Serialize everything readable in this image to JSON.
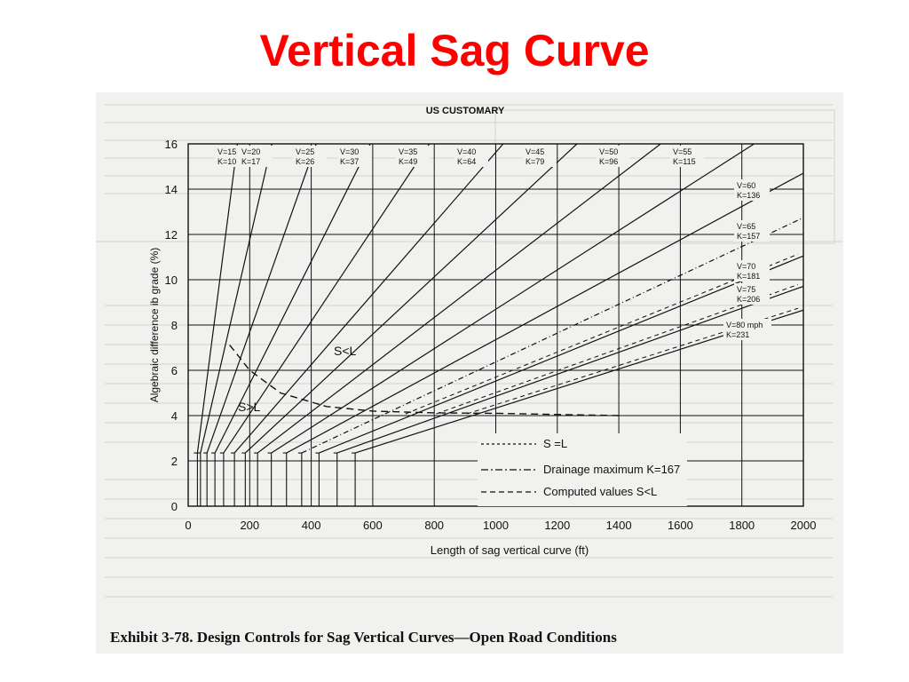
{
  "page": {
    "title": "Vertical Sag Curve",
    "title_color": "#ff0000"
  },
  "exhibit": {
    "caption": "Exhibit 3-78.  Design Controls for Sag Vertical Curves—Open Road Conditions"
  },
  "chart_data": {
    "type": "line",
    "title": "US CUSTOMARY",
    "xlabel": "Length of sag vertical curve (ft)",
    "ylabel": "Algebraic difference ib grade (%)",
    "xlim": [
      0,
      2000
    ],
    "ylim": [
      0,
      16
    ],
    "xticks": [
      0,
      200,
      400,
      600,
      800,
      1000,
      1200,
      1400,
      1600,
      1800,
      2000
    ],
    "yticks": [
      0,
      2,
      4,
      6,
      8,
      10,
      12,
      14,
      16
    ],
    "grid": true,
    "series": [
      {
        "name": "V=15",
        "label_k": "K=10",
        "K": 10
      },
      {
        "name": "V=20",
        "label_k": "K=17",
        "K": 17
      },
      {
        "name": "V=25",
        "label_k": "K=26",
        "K": 26
      },
      {
        "name": "V=30",
        "label_k": "K=37",
        "K": 37
      },
      {
        "name": "V=35",
        "label_k": "K=49",
        "K": 49
      },
      {
        "name": "V=40",
        "label_k": "K=64",
        "K": 64
      },
      {
        "name": "V=45",
        "label_k": "K=79",
        "K": 79
      },
      {
        "name": "V=50",
        "label_k": "K=96",
        "K": 96
      },
      {
        "name": "V=55",
        "label_k": "K=115",
        "K": 115
      },
      {
        "name": "V=60",
        "label_k": "K=136",
        "K": 136
      },
      {
        "name": "V=65",
        "label_k": "K=157",
        "K": 157
      },
      {
        "name": "V=70",
        "label_k": "K=181",
        "K": 181
      },
      {
        "name": "V=75",
        "label_k": "K=206",
        "K": 206
      },
      {
        "name": "V=80 mph",
        "label_k": "K=231",
        "K": 231
      }
    ],
    "boundary_S_equals_L": [
      [
        1400,
        4.0
      ],
      [
        1200,
        4.05
      ],
      [
        1000,
        4.1
      ],
      [
        800,
        4.12
      ],
      [
        600,
        4.2
      ],
      [
        450,
        4.4
      ],
      [
        300,
        5.0
      ],
      [
        200,
        6.0
      ],
      [
        130,
        7.2
      ]
    ],
    "annotations": [
      "S<L",
      "S>L"
    ],
    "legend": [
      {
        "label": "S =L",
        "style": "short-dash"
      },
      {
        "label": "Drainage maximum K=167",
        "style": "dash-dot"
      },
      {
        "label": "Computed values S<L",
        "style": "dash"
      }
    ],
    "drainage_K": 167
  }
}
